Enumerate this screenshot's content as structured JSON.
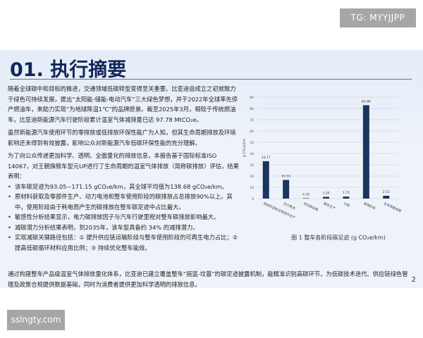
{
  "badge": "TG: MYYJJPP",
  "watermark": "sslngty.com",
  "title": "01. 执行摘要",
  "paragraphs": [
    "随着全球碳中和目标的推进，交通领域低碳转型变得至关重要。比亚迪自成立之初就致力于绿色可持续发展，提出“太阳能-储能-电动汽车”三大绿色梦想，并于2022年全球率先停产燃油车，来助力实现“为地球降温1℃”的品牌愿景。截至2025年3月，相较于传统燃油车，比亚迪新能源汽车行驶阶段累计温室气体减排量已达 97.78 MtCO₂e。",
    "虽然新能源汽车使用环节的零排放或低排放环保性能广为人知，但其生命周期排放及环境影响还未得到有效披露，影响公众对新能源汽车低碳环保性能的充分理解。",
    "为了向公众传递更加科学、透明、全面量化的排放信息，本报告基于国际标准ISO 14067，对王朝旗舰车型元UP进行了生命周期的温室气体排放（简称碳排放）评估，结果表明："
  ],
  "bullets": [
    "该车碳足迹为93.05~171.15 gCO₂e/km，其全球平均值为138.68 gCO₂e/km。",
    "原材料获取及零部件生产、动力电池和整车使用阶段的碳排放占总排放90%以上。其中，使用阶段由于耗电而产生的碳排放在整车碳足迹中占比最大。",
    "敏感性分析结果显示，电力碳排放因子与汽车行驶里程对整车碳排放影响最大。",
    "减碳潜力分析结果表明，到2035年，该车型具备约 34% 的减排潜力。",
    "实现减碳关键路径包括：① 提升供应链运输阶段与整车使用阶段的可再生电力占比；② 提高低碳循环材料应用比例；③ 持续优化整车能效。"
  ],
  "footer": "通过构建整车产品级温室气体排放量化体系，比亚迪已建立覆盖整车“摇篮-坟墓”的碳足迹披露机制，能精准识别高碳环节，为低碳技术迭代、供应链绿色管理及政策合规提供数据基础，同时为消费者提供更加科学透明的排放信息。",
  "page_number": "2",
  "chart_data": {
    "type": "bar",
    "title": "图 1 整车各阶段碳足迹 (g CO₂e/km)",
    "ylabel": "g CO₂e/km",
    "xlabel": "",
    "categories": [
      "原材料获取及零部件生产",
      "动力电池",
      "供应链运输",
      "整车生产",
      "分销",
      "使用阶段",
      "生命周期末期"
    ],
    "values": [
      33.17,
      16.55,
      0.35,
      1.5,
      1.75,
      82.86,
      2.51
    ],
    "value_labels": [
      "33.17",
      "16.55",
      "0.35",
      "1.50",
      "1.75",
      "82.86",
      "2.51"
    ],
    "ylim": [
      0,
      90
    ],
    "yticks": [
      0,
      10,
      20,
      30,
      40,
      50,
      60,
      70,
      80,
      90
    ],
    "grid": true,
    "bar_color": "#1b3460"
  }
}
